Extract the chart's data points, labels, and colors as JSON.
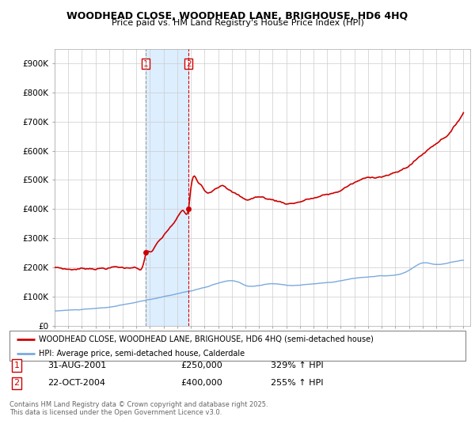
{
  "title": "WOODHEAD CLOSE, WOODHEAD LANE, BRIGHOUSE, HD6 4HQ",
  "subtitle": "Price paid vs. HM Land Registry's House Price Index (HPI)",
  "legend_line1": "WOODHEAD CLOSE, WOODHEAD LANE, BRIGHOUSE, HD6 4HQ (semi-detached house)",
  "legend_line2": "HPI: Average price, semi-detached house, Calderdale",
  "footer": "Contains HM Land Registry data © Crown copyright and database right 2025.\nThis data is licensed under the Open Government Licence v3.0.",
  "annotation1_label": "1",
  "annotation1_date": "31-AUG-2001",
  "annotation1_price": "£250,000",
  "annotation1_hpi": "329% ↑ HPI",
  "annotation2_label": "2",
  "annotation2_date": "22-OCT-2004",
  "annotation2_price": "£400,000",
  "annotation2_hpi": "255% ↑ HPI",
  "property_color": "#cc0000",
  "hpi_color": "#7aaadd",
  "highlight_color": "#ddeeff",
  "ylim": [
    0,
    950000
  ],
  "yticks": [
    0,
    100000,
    200000,
    300000,
    400000,
    500000,
    600000,
    700000,
    800000,
    900000
  ],
  "ytick_labels": [
    "£0",
    "£100K",
    "£200K",
    "£300K",
    "£400K",
    "£500K",
    "£600K",
    "£700K",
    "£800K",
    "£900K"
  ],
  "sale1_x": 2001.67,
  "sale1_y": 250000,
  "sale2_x": 2004.83,
  "sale2_y": 400000,
  "highlight_x1": 2001.67,
  "highlight_x2": 2004.83,
  "xmin": 1995.0,
  "xmax": 2025.5
}
